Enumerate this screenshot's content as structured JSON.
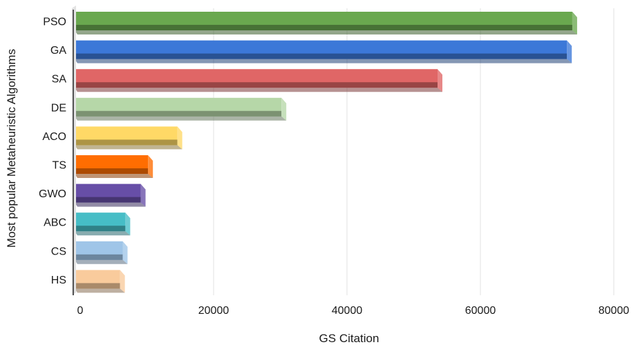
{
  "chart_data": {
    "type": "bar",
    "orientation": "horizontal",
    "xlabel": "GS Citation",
    "ylabel": "Most popular  Metaheuristic Algorithms",
    "xlim": [
      0,
      80000
    ],
    "xticks": [
      "0",
      "20000",
      "40000",
      "60000",
      "80000"
    ],
    "grid": "vertical",
    "legend": "none",
    "categories": [
      "PSO",
      "GA",
      "SA",
      "DE",
      "ACO",
      "TS",
      "GWO",
      "ABC",
      "CS",
      "HS"
    ],
    "values": [
      74500,
      73700,
      54300,
      30900,
      15300,
      10900,
      9800,
      7500,
      7100,
      6700
    ],
    "colors": [
      "#6aa84f",
      "#3c78d8",
      "#e06666",
      "#b6d7a8",
      "#ffd966",
      "#ff6d01",
      "#674ea7",
      "#46bdc6",
      "#9fc5e8",
      "#f9cb9c"
    ]
  }
}
